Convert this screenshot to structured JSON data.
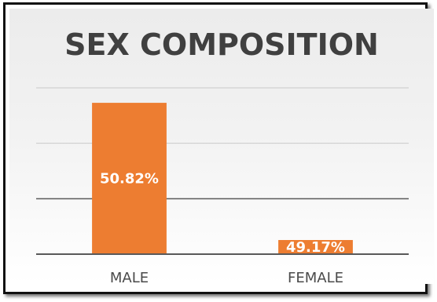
{
  "chart_data": {
    "type": "bar",
    "title": "SEX COMPOSITION",
    "categories": [
      "MALE",
      "FEMALE"
    ],
    "values": [
      50.82,
      49.17
    ],
    "data_labels": [
      "50.82%",
      "49.17%"
    ],
    "ylim": [
      49.0,
      51.0
    ],
    "grid": true,
    "legend": "none",
    "colors": {
      "bar": "#ed7d31",
      "gridline": "#c8c8c8",
      "axis": "#595959"
    }
  }
}
